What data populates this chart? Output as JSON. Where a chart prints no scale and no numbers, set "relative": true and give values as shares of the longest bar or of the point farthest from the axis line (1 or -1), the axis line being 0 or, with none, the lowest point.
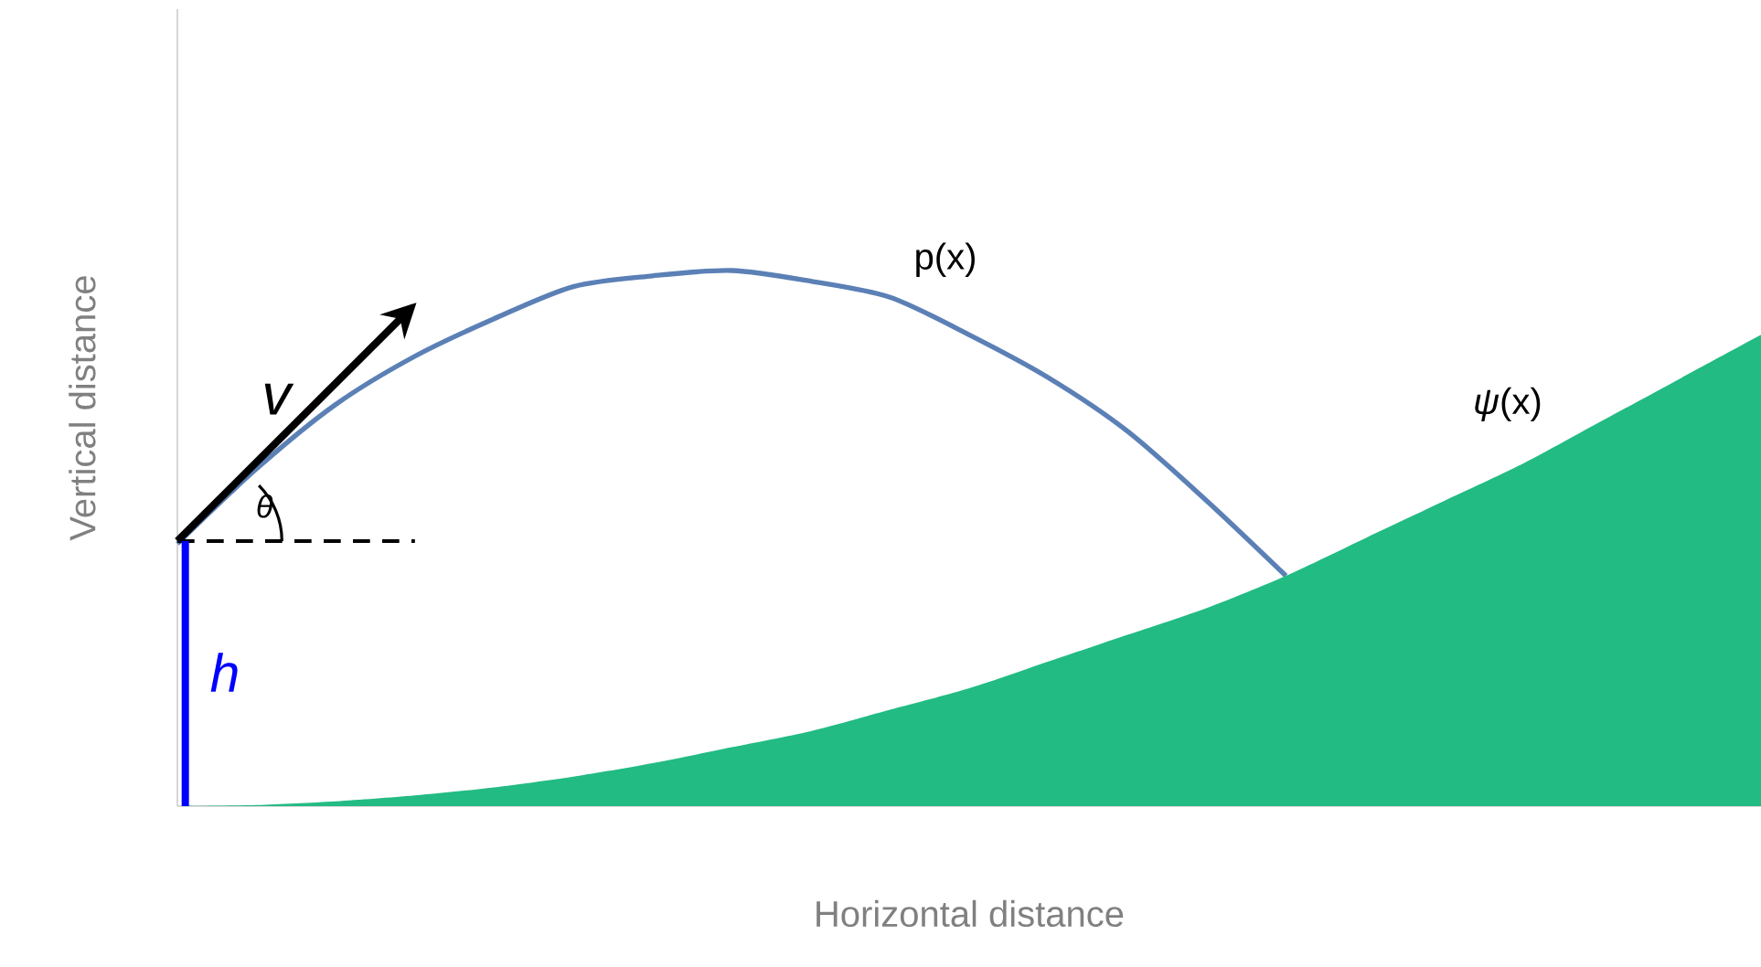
{
  "chart_data": {
    "type": "line",
    "relative": true,
    "xlabel": "Horizontal distance",
    "ylabel": "Vertical distance",
    "categories": [
      null,
      null,
      null,
      null,
      null,
      null,
      null,
      null,
      null,
      null,
      null,
      null,
      null,
      null,
      null,
      null,
      null,
      null,
      null,
      null,
      null
    ],
    "series": [
      {
        "name": "p(x)",
        "color": "#5b80b6",
        "values": [
          0.49,
          0.63,
          0.75,
          0.84,
          0.91,
          0.97,
          0.99,
          1,
          0.98,
          0.95,
          0.88,
          0.8,
          0.7,
          0.57,
          0.43,
          null,
          null,
          null,
          null,
          null,
          null
        ]
      },
      {
        "name": "*ψ*(x)",
        "type": "area",
        "color": "#22bb83",
        "values": [
          0,
          0.002,
          0.009,
          0.02,
          0.035,
          0.055,
          0.08,
          0.11,
          0.14,
          0.18,
          0.22,
          0.27,
          0.32,
          0.37,
          0.43,
          0.5,
          0.57,
          0.64,
          0.72,
          0.8,
          0.88
        ]
      }
    ],
    "ref_lines": [
      {
        "axis": "y",
        "value": 0.495,
        "color": "#000000",
        "line_style": "dashed"
      }
    ],
    "annotations": [
      "v",
      "θ",
      "h"
    ]
  }
}
